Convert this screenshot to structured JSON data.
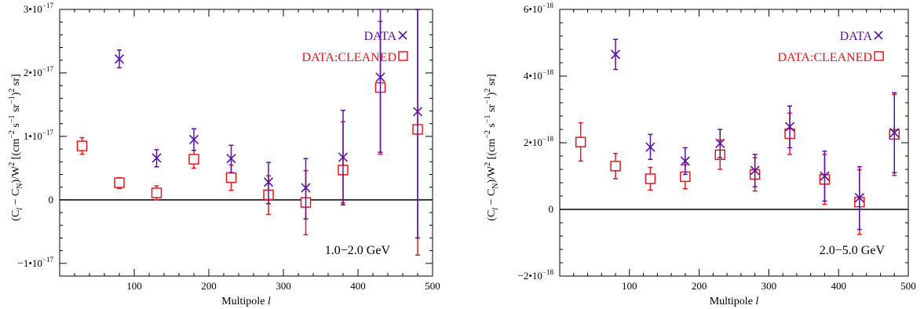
{
  "colors": {
    "data": "#5a10a8",
    "cleaned": "#e8161b",
    "axis": "#000000",
    "zero_line": "#000000"
  },
  "chart_data": [
    {
      "type": "scatter",
      "annotation": "1.0−2.0 GeV",
      "xlabel": "Multipole l",
      "ylabel": "(Cₗ − Cₙ)/W² [(cm⁻² s⁻¹ sr⁻¹)² sr]",
      "ylabel_parts": {
        "p1": "(C",
        "sub1": "l",
        "p2": " − C",
        "sub2": "N",
        "p3": ")/W",
        "sup1": "2",
        "p4": "  [(cm",
        "sup2": "−2",
        "p5": " s",
        "sup3": "−1",
        "p6": " sr",
        "sup4": "−1",
        "p7": ")",
        "sup5": "2",
        "p8": " sr]"
      },
      "xlim": [
        0,
        500
      ],
      "ylim": [
        -1.2e-17,
        3e-17
      ],
      "xticks": [
        100,
        200,
        300,
        400,
        500
      ],
      "yticks": [
        {
          "value": -1e-17,
          "label": "−1•10⁻¹⁷"
        },
        {
          "value": 0,
          "label": "0"
        },
        {
          "value": 1e-17,
          "label": "1•10⁻¹⁷"
        },
        {
          "value": 2e-17,
          "label": "2•10⁻¹⁷"
        },
        {
          "value": 3e-17,
          "label": "3•10⁻¹⁷"
        }
      ],
      "legend_position": "top-right",
      "series": [
        {
          "name": "DATA",
          "marker": "x",
          "x": [
            80,
            130,
            180,
            230,
            280,
            330,
            380,
            430,
            480
          ],
          "y": [
            2.22e-17,
            6.6e-18,
            9.5e-18,
            6.5e-18,
            2.8e-18,
            1.9e-18,
            6.7e-18,
            1.93e-17,
            1.39e-17
          ],
          "yerr_low": [
            2.08e-17,
            5.2e-18,
            7.8e-18,
            4.3e-18,
            -6e-19,
            -3e-18,
            -8e-19,
            7.5e-18,
            -6e-18
          ],
          "yerr_high": [
            2.36e-17,
            7.9e-18,
            1.12e-17,
            8.6e-18,
            5.9e-18,
            6.5e-18,
            1.41e-17,
            3e-17,
            3e-17
          ]
        },
        {
          "name": "DATA:CLEANED",
          "marker": "square",
          "x": [
            30,
            80,
            130,
            180,
            230,
            280,
            330,
            380,
            430,
            480
          ],
          "y": [
            8.5e-18,
            2.7e-18,
            1.1e-18,
            6.4e-18,
            3.5e-18,
            8e-19,
            -4e-19,
            4.7e-18,
            1.77e-17,
            1.11e-17
          ],
          "yerr_low": [
            7.2e-18,
            1.8e-18,
            0.0,
            5e-18,
            1.5e-18,
            -2.3e-18,
            -5.5e-18,
            -5e-19,
            7.2e-18,
            -8.7e-18
          ],
          "yerr_high": [
            9.8e-18,
            3.5e-18,
            2.2e-18,
            7.8e-18,
            5.5e-18,
            3.8e-18,
            4.6e-18,
            1.23e-17,
            2.81e-17,
            3e-17
          ]
        }
      ]
    },
    {
      "type": "scatter",
      "annotation": "2.0−5.0 GeV",
      "xlabel": "Multipole l",
      "ylabel": "(Cₗ − Cₙ)/W² [(cm⁻² s⁻¹ sr⁻¹)² sr]",
      "ylabel_parts": {
        "p1": "(C",
        "sub1": "l",
        "p2": " − C",
        "sub2": "N",
        "p3": ")/W",
        "sup1": "2",
        "p4": "  [(cm",
        "sup2": "−2",
        "p5": " s",
        "sup3": "−1",
        "p6": " sr",
        "sup4": "−1",
        "p7": ")",
        "sup5": "2",
        "p8": " sr]"
      },
      "xlim": [
        0,
        500
      ],
      "ylim": [
        -2e-18,
        6e-18
      ],
      "xticks": [
        100,
        200,
        300,
        400,
        500
      ],
      "yticks": [
        {
          "value": -2e-18,
          "label": "−2•10⁻¹⁸"
        },
        {
          "value": 0,
          "label": "0"
        },
        {
          "value": 2e-18,
          "label": "2•10⁻¹⁸"
        },
        {
          "value": 4e-18,
          "label": "4•10⁻¹⁸"
        },
        {
          "value": 6e-18,
          "label": "6•10⁻¹⁸"
        }
      ],
      "legend_position": "top-right",
      "series": [
        {
          "name": "DATA",
          "marker": "x",
          "x": [
            80,
            130,
            180,
            230,
            280,
            330,
            380,
            430,
            480
          ],
          "y": [
            4.65e-18,
            1.87e-18,
            1.45e-18,
            1.98e-18,
            1.17e-18,
            2.48e-18,
            1e-18,
            3.5e-19,
            2.3e-18
          ],
          "yerr_low": [
            4.2e-18,
            1.5e-18,
            1.05e-18,
            1.55e-18,
            6.8e-19,
            1.85e-18,
            2.5e-19,
            -6e-19,
            1.1e-18
          ],
          "yerr_high": [
            5.1e-18,
            2.25e-18,
            1.85e-18,
            2.4e-18,
            1.65e-18,
            3.1e-18,
            1.75e-18,
            1.28e-18,
            3.5e-18
          ]
        },
        {
          "name": "DATA:CLEANED",
          "marker": "square",
          "x": [
            30,
            80,
            130,
            180,
            230,
            280,
            330,
            380,
            430,
            480
          ],
          "y": [
            2.02e-18,
            1.3e-18,
            9.2e-19,
            9.8e-19,
            1.64e-18,
            1.05e-18,
            2.27e-18,
            9e-19,
            2.2e-19,
            2.25e-18
          ],
          "yerr_low": [
            1.45e-18,
            9.2e-19,
            5.8e-19,
            6.2e-19,
            1.2e-18,
            5.5e-19,
            1.65e-18,
            1.5e-19,
            -7.5e-19,
            1.02e-18
          ],
          "yerr_high": [
            2.6e-18,
            1.68e-18,
            1.26e-18,
            1.34e-18,
            2.08e-18,
            1.55e-18,
            2.89e-18,
            1.65e-18,
            1.19e-18,
            3.45e-18
          ]
        }
      ]
    }
  ]
}
